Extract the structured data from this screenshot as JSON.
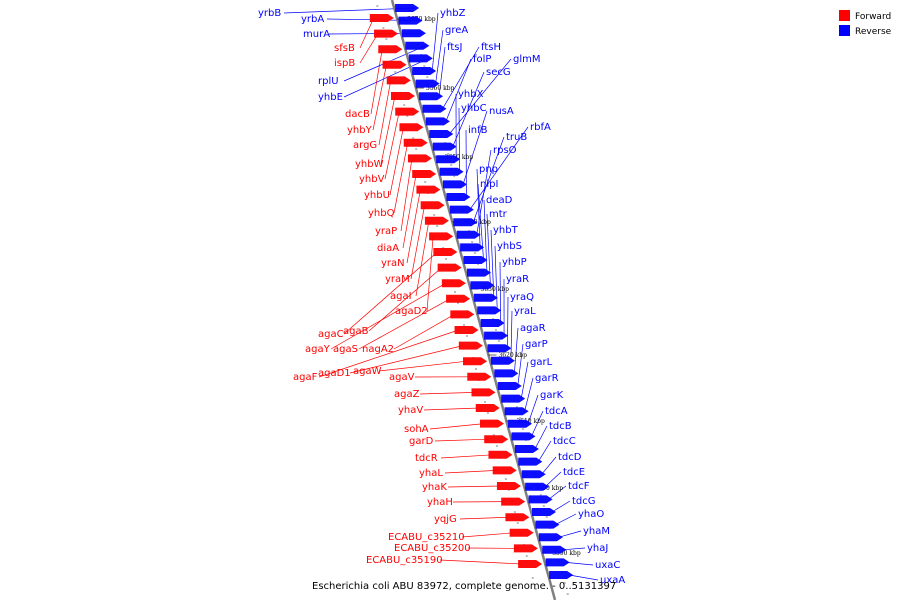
{
  "caption": "Escherichia coli ABU 83972, complete genome. - 0..5131397",
  "legend": [
    {
      "label": "Forward",
      "color": "#ff0000"
    },
    {
      "label": "Reverse",
      "color": "#0000ff"
    }
  ],
  "colors": {
    "forward": "#ff0000",
    "reverse": "#0000ff",
    "axis": "#808080"
  },
  "kbp_ticks": [
    3670,
    3660,
    3650,
    3640,
    3630,
    3620,
    3610,
    3600,
    3590
  ],
  "forward_genes": [
    "sfsB",
    "ispB",
    "dacB",
    "yhbY",
    "argG",
    "yhbW",
    "yhbV",
    "yhbU",
    "yhbQ",
    "yraP",
    "diaA",
    "yraN",
    "yraM",
    "agaI",
    "agaD2",
    "agaC",
    "agaB",
    "agaY",
    "agaS",
    "nagA2",
    "agaF",
    "agaD1",
    "agaW",
    "agaV",
    "agaZ",
    "yhaV",
    "sohA",
    "garD",
    "tdcR",
    "yhaL",
    "yhaK",
    "yhaH",
    "yqjG",
    "ECABU_c35210",
    "ECABU_c35200",
    "ECABU_c35190"
  ],
  "reverse_genes": [
    "yrbB",
    "yrbA",
    "murA",
    "rplU",
    "yhbE",
    "yhbZ",
    "greA",
    "ftsJ",
    "ftsH",
    "folP",
    "glmM",
    "secG",
    "yhbX",
    "yhbC",
    "nusA",
    "infB",
    "rbfA",
    "truB",
    "rpsO",
    "pnp",
    "nlpI",
    "deaD",
    "mtr",
    "yhbT",
    "yhbS",
    "yhbP",
    "yraR",
    "yraQ",
    "yraL",
    "agaR",
    "garP",
    "garL",
    "garR",
    "garK",
    "tdcA",
    "tdcB",
    "tdcC",
    "tdcD",
    "tdcE",
    "tdcF",
    "tdcG",
    "yhaO",
    "yhaM",
    "yhaJ",
    "uxaC",
    "uxaA"
  ]
}
